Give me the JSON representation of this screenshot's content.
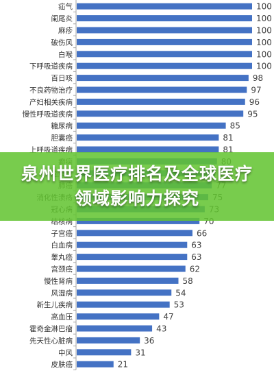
{
  "chart_data": {
    "type": "bar",
    "orientation": "horizontal",
    "title": "",
    "xlabel": "",
    "ylabel": "",
    "xlim": [
      0,
      100
    ],
    "grid": false,
    "legend": "none",
    "bar_color": "#4472C4",
    "categories": [
      "疝气",
      "阑尾炎",
      "麻疹",
      "破伤风",
      "白喉",
      "下呼吸道疾病",
      "百日咳",
      "不良药物治疗",
      "产妇相关疾病",
      "慢性呼吸道疾病",
      "糖尿病",
      "胆囊癌",
      "上呼吸道疾病",
      "癫痫",
      "脑膜炎",
      "肺癌",
      "消化性溃疡",
      "冠心病",
      "结核病",
      "子宫癌",
      "白血病",
      "睾丸癌",
      "宫颈癌",
      "慢性肾病",
      "风湿病",
      "新生儿疾病",
      "高血压",
      "霍奇金淋巴瘤",
      "先天性心脏病",
      "中风",
      "皮肤癌"
    ],
    "values": [
      100,
      100,
      100,
      100,
      100,
      100,
      98,
      97,
      96,
      95,
      85,
      81,
      81,
      80,
      79,
      77,
      75,
      73,
      70,
      66,
      63,
      63,
      62,
      58,
      54,
      53,
      47,
      43,
      36,
      31,
      21
    ]
  },
  "overlay": {
    "title": "泉州世界医疗排名及全球医疗领域影响力探究",
    "color": "#62C430"
  }
}
